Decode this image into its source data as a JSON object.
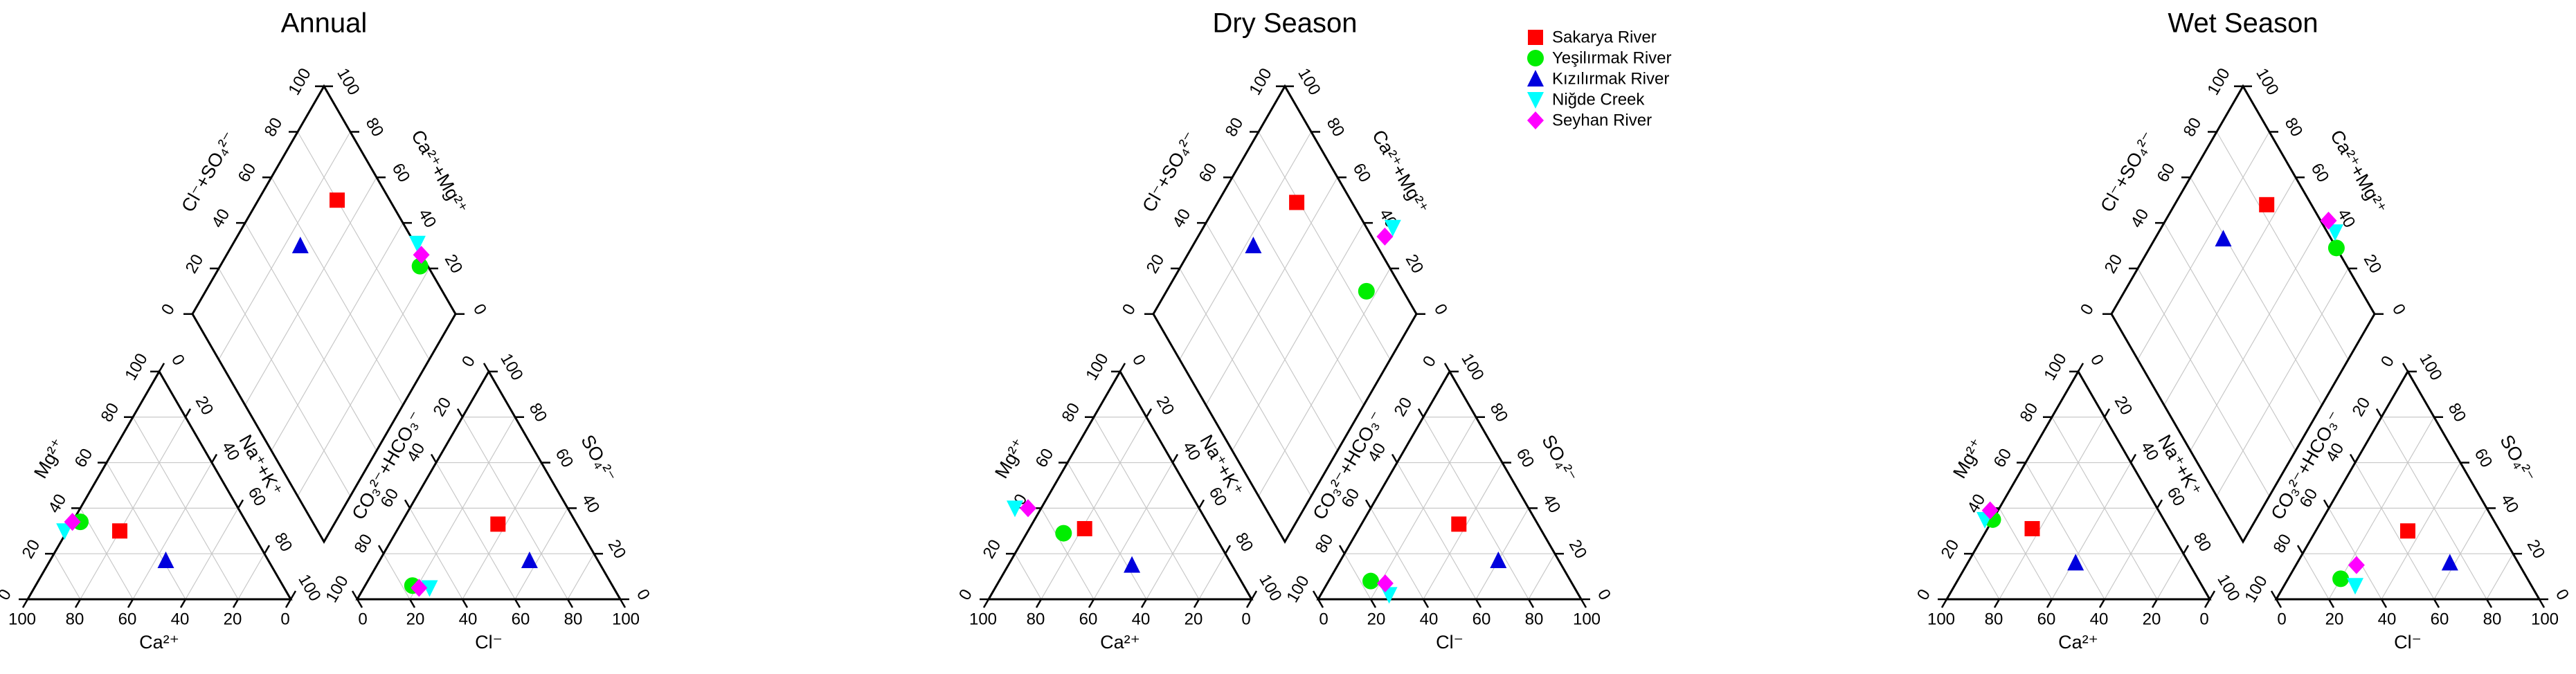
{
  "chart_data": [
    {
      "type": "scatter",
      "subtype": "piper-diagram",
      "title": "Annual",
      "ticks": [
        "0",
        "20",
        "40",
        "60",
        "80",
        "100"
      ],
      "axes": {
        "cation_left": "Mg²⁺",
        "cation_bottom": "Ca²⁺",
        "cation_right": "Na⁺+K⁺",
        "anion_left": "CO₃²⁻+HCO₃⁻",
        "anion_bottom": "Cl⁻",
        "anion_right": "SO₄²⁻",
        "diamond_left": "Cl⁻+SO₄²⁻",
        "diamond_right": "Ca²⁺+Mg²⁺"
      },
      "series": [
        {
          "name": "Sakarya River",
          "cation": {
            "Ca": 50,
            "Mg": 30,
            "NaK": 20
          },
          "anion": {
            "Cl": 37,
            "SO4": 33,
            "HCO3": 30
          }
        },
        {
          "name": "Yeşilırmak River",
          "cation": {
            "Ca": 63,
            "Mg": 34,
            "NaK": 3
          },
          "anion": {
            "Cl": 18,
            "SO4": 6,
            "HCO3": 76
          }
        },
        {
          "name": "Kızılırmak River",
          "cation": {
            "Ca": 39,
            "Mg": 17,
            "NaK": 44
          },
          "anion": {
            "Cl": 57,
            "SO4": 17,
            "HCO3": 26
          }
        },
        {
          "name": "Niğde Creek",
          "cation": {
            "Ca": 71,
            "Mg": 30,
            "NaK": -1
          },
          "anion": {
            "Cl": 25,
            "SO4": 5,
            "HCO3": 70
          }
        },
        {
          "name": "Seyhan River",
          "cation": {
            "Ca": 66,
            "Mg": 34,
            "NaK": 0
          },
          "anion": {
            "Cl": 21,
            "SO4": 5,
            "HCO3": 74
          }
        }
      ]
    },
    {
      "type": "scatter",
      "subtype": "piper-diagram",
      "title": "Dry Season",
      "ticks": [
        "0",
        "20",
        "40",
        "60",
        "80",
        "100"
      ],
      "axes": {
        "cation_left": "Mg²⁺",
        "cation_bottom": "Ca²⁺",
        "cation_right": "Na⁺+K⁺",
        "anion_left": "CO₃²⁻+HCO₃⁻",
        "anion_bottom": "Cl⁻",
        "anion_right": "SO₄²⁻",
        "diamond_left": "Cl⁻+SO₄²⁻",
        "diamond_right": "Ca²⁺+Mg²⁺"
      },
      "series": [
        {
          "name": "Sakarya River",
          "cation": {
            "Ca": 48,
            "Mg": 31,
            "NaK": 21
          },
          "anion": {
            "Cl": 37,
            "SO4": 33,
            "HCO3": 30
          }
        },
        {
          "name": "Yeşilırmak River",
          "cation": {
            "Ca": 57,
            "Mg": 29,
            "NaK": 14
          },
          "anion": {
            "Cl": 16,
            "SO4": 8,
            "HCO3": 76
          }
        },
        {
          "name": "Kızılırmak River",
          "cation": {
            "Ca": 38,
            "Mg": 15,
            "NaK": 47
          },
          "anion": {
            "Cl": 60,
            "SO4": 17,
            "HCO3": 23
          }
        },
        {
          "name": "Niğde Creek",
          "cation": {
            "Ca": 70,
            "Mg": 40,
            "NaK": -10
          },
          "anion": {
            "Cl": 26,
            "SO4": 2,
            "HCO3": 72
          }
        },
        {
          "name": "Seyhan River",
          "cation": {
            "Ca": 65,
            "Mg": 40,
            "NaK": -5
          },
          "anion": {
            "Cl": 22,
            "SO4": 7,
            "HCO3": 71
          }
        }
      ]
    },
    {
      "type": "scatter",
      "subtype": "piper-diagram",
      "title": "Wet Season",
      "ticks": [
        "0",
        "20",
        "40",
        "60",
        "80",
        "100"
      ],
      "axes": {
        "cation_left": "Mg²⁺",
        "cation_bottom": "Ca²⁺",
        "cation_right": "Na⁺+K⁺",
        "anion_left": "CO₃²⁻+HCO₃⁻",
        "anion_bottom": "Cl⁻",
        "anion_right": "SO₄²⁻",
        "diamond_left": "Cl⁻+SO₄²⁻",
        "diamond_right": "Ca²⁺+Mg²⁺"
      },
      "series": [
        {
          "name": "Sakarya River",
          "cation": {
            "Ca": 52,
            "Mg": 31,
            "NaK": 17
          },
          "anion": {
            "Cl": 35,
            "SO4": 30,
            "HCO3": 35
          }
        },
        {
          "name": "Yeşilırmak River",
          "cation": {
            "Ca": 65,
            "Mg": 35,
            "NaK": 0
          },
          "anion": {
            "Cl": 20,
            "SO4": 9,
            "HCO3": 71
          }
        },
        {
          "name": "Kızılırmak River",
          "cation": {
            "Ca": 43,
            "Mg": 16,
            "NaK": 41
          },
          "anion": {
            "Cl": 58,
            "SO4": 16,
            "HCO3": 26
          }
        },
        {
          "name": "Niğde Creek",
          "cation": {
            "Ca": 68,
            "Mg": 35,
            "NaK": -3
          },
          "anion": {
            "Cl": 27,
            "SO4": 6,
            "HCO3": 67
          }
        },
        {
          "name": "Seyhan River",
          "cation": {
            "Ca": 64,
            "Mg": 39,
            "NaK": -3
          },
          "anion": {
            "Cl": 23,
            "SO4": 15,
            "HCO3": 62
          }
        }
      ]
    }
  ],
  "legend": {
    "placement": "top-center",
    "items": [
      {
        "label": "Sakarya River",
        "color": "#ff0000",
        "marker": "square"
      },
      {
        "label": "Yeşilırmak River",
        "color": "#00ee00",
        "marker": "circle"
      },
      {
        "label": "Kızılırmak River",
        "color": "#0000dd",
        "marker": "triangle-up"
      },
      {
        "label": "Niğde Creek",
        "color": "#00ffff",
        "marker": "triangle-down"
      },
      {
        "label": "Seyhan River",
        "color": "#ff00ff",
        "marker": "diamond"
      }
    ]
  }
}
